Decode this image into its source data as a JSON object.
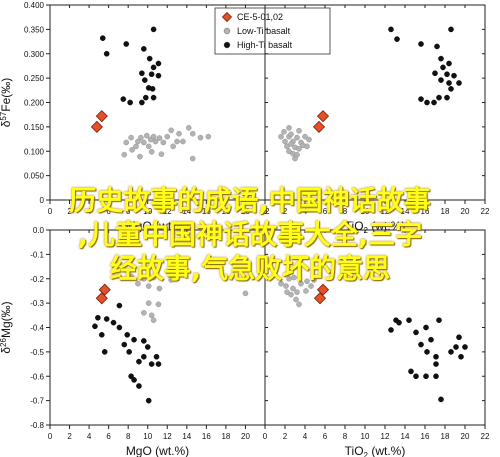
{
  "chart_data": [
    {
      "type": "scatter",
      "panel": "top-left",
      "title": "",
      "xlabel": "MgO",
      "xlabel_rest": "(wt.%)",
      "ylabel_prefix": "δ",
      "ylabel_sup": "57",
      "ylabel_rest": "Fe(‰)",
      "xlim": [
        0,
        22
      ],
      "ylim": [
        0,
        0.4
      ],
      "xticks": [
        "0",
        "2",
        "4",
        "6",
        "8",
        "10",
        "12",
        "14",
        "16",
        "18",
        "20",
        "22"
      ],
      "yticks": [
        "0",
        "0.050",
        "0.100",
        "0.150",
        "0.200",
        "0.250",
        "0.300",
        "0.350",
        "0.400"
      ],
      "legend": {
        "position": "top-right",
        "entries": [
          {
            "label": "CE-5-01,02",
            "marker": "diamond",
            "color": "#e2522a"
          },
          {
            "label": "Low-Ti basalt",
            "marker": "circle",
            "color": "#b3b3b3"
          },
          {
            "label": "High-Ti basalt",
            "marker": "circle",
            "color": "#111111"
          }
        ]
      },
      "series": [
        {
          "group": "CE-5-01,02",
          "points": [
            [
              4.8,
              0.15
            ],
            [
              5.3,
              0.172
            ]
          ]
        },
        {
          "group": "Low-Ti basalt",
          "points": [
            [
              7.8,
              0.118
            ],
            [
              8.3,
              0.128
            ],
            [
              8.8,
              0.11
            ],
            [
              9,
              0.12
            ],
            [
              9.3,
              0.128
            ],
            [
              9.6,
              0.118
            ],
            [
              9.9,
              0.132
            ],
            [
              10.1,
              0.11
            ],
            [
              10.3,
              0.124
            ],
            [
              10.6,
              0.13
            ],
            [
              10.8,
              0.12
            ],
            [
              11.2,
              0.127
            ],
            [
              11.6,
              0.118
            ],
            [
              12,
              0.13
            ],
            [
              12.6,
              0.11
            ],
            [
              13.2,
              0.136
            ],
            [
              13.6,
              0.12
            ],
            [
              14.2,
              0.148
            ],
            [
              14.6,
              0.136
            ],
            [
              15.4,
              0.128
            ],
            [
              16.2,
              0.13
            ],
            [
              13,
              0.12
            ],
            [
              12.4,
              0.143
            ],
            [
              14.6,
              0.085
            ],
            [
              8.4,
              0.103
            ],
            [
              7.6,
              0.093
            ],
            [
              10.4,
              0.099
            ],
            [
              9.2,
              0.089
            ],
            [
              11.4,
              0.094
            ]
          ]
        },
        {
          "group": "High-Ti basalt",
          "points": [
            [
              5.4,
              0.332
            ],
            [
              5.8,
              0.3
            ],
            [
              7.8,
              0.32
            ],
            [
              9.6,
              0.31
            ],
            [
              10.6,
              0.35
            ],
            [
              10.2,
              0.29
            ],
            [
              11.1,
              0.28
            ],
            [
              10.6,
              0.272
            ],
            [
              9.4,
              0.26
            ],
            [
              10.4,
              0.258
            ],
            [
              9.7,
              0.246
            ],
            [
              11.1,
              0.255
            ],
            [
              10.1,
              0.23
            ],
            [
              10.5,
              0.228
            ],
            [
              9.8,
              0.21
            ],
            [
              10.6,
              0.21
            ],
            [
              8.2,
              0.2
            ],
            [
              7.5,
              0.207
            ],
            [
              9.4,
              0.2
            ]
          ]
        }
      ]
    },
    {
      "type": "scatter",
      "panel": "top-right",
      "title": "",
      "xlabel": "TiO",
      "xlabel_sub": "2",
      "xlabel_rest": "(wt.%)",
      "xlim": [
        0,
        22
      ],
      "ylim": [
        0,
        0.4
      ],
      "xticks": [
        "0",
        "2",
        "4",
        "6",
        "8",
        "10",
        "12",
        "14",
        "16",
        "18",
        "20",
        "22"
      ],
      "series": [
        {
          "group": "CE-5-01,02",
          "points": [
            [
              5.4,
              0.15
            ],
            [
              5.8,
              0.172
            ]
          ]
        },
        {
          "group": "Low-Ti basalt",
          "points": [
            [
              1.6,
              0.13
            ],
            [
              2,
              0.12
            ],
            [
              2.4,
              0.13
            ],
            [
              2.8,
              0.12
            ],
            [
              3.2,
              0.128
            ],
            [
              3.6,
              0.118
            ],
            [
              4,
              0.13
            ],
            [
              2.2,
              0.11
            ],
            [
              2.6,
              0.115
            ],
            [
              3,
              0.108
            ],
            [
              3.4,
              0.105
            ],
            [
              3.8,
              0.112
            ],
            [
              4.4,
              0.124
            ],
            [
              2.4,
              0.1
            ],
            [
              2.8,
              0.095
            ],
            [
              3.2,
              0.093
            ],
            [
              1.9,
              0.14
            ],
            [
              2.4,
              0.148
            ],
            [
              3.4,
              0.142
            ],
            [
              4.2,
              0.11
            ],
            [
              3,
              0.085
            ],
            [
              2.6,
              0.135
            ]
          ]
        },
        {
          "group": "High-Ti basalt",
          "points": [
            [
              12.6,
              0.35
            ],
            [
              13.2,
              0.33
            ],
            [
              15.6,
              0.32
            ],
            [
              17.2,
              0.315
            ],
            [
              18.6,
              0.35
            ],
            [
              17.6,
              0.29
            ],
            [
              18.4,
              0.28
            ],
            [
              17.8,
              0.272
            ],
            [
              17,
              0.26
            ],
            [
              18.2,
              0.258
            ],
            [
              17.6,
              0.246
            ],
            [
              18.9,
              0.255
            ],
            [
              18.4,
              0.24
            ],
            [
              18.6,
              0.228
            ],
            [
              17.4,
              0.21
            ],
            [
              18.2,
              0.21
            ],
            [
              16.2,
              0.2
            ],
            [
              15.6,
              0.207
            ],
            [
              16.9,
              0.2
            ],
            [
              19.4,
              0.24
            ]
          ]
        }
      ]
    },
    {
      "type": "scatter",
      "panel": "bottom-left",
      "title": "",
      "xlabel": "MgO",
      "xlabel_rest": "(wt.%)",
      "ylabel_prefix": "δ",
      "ylabel_sup": "26",
      "ylabel_rest": "Mg(‰)",
      "xlim": [
        0,
        22
      ],
      "ylim": [
        -0.8,
        0
      ],
      "xticks": [
        "0",
        "2",
        "4",
        "6",
        "8",
        "10",
        "12",
        "14",
        "16",
        "18",
        "20"
      ],
      "yticks": [
        "-0.8",
        "-0.7",
        "-0.6",
        "-0.5",
        "-0.4",
        "-0.3",
        "-0.2",
        "-0.1",
        "0.0"
      ],
      "series": [
        {
          "group": "CE-5-01,02",
          "points": [
            [
              5.3,
              -0.28
            ],
            [
              5.6,
              -0.245
            ]
          ]
        },
        {
          "group": "Low-Ti basalt",
          "points": [
            [
              9,
              -0.22
            ],
            [
              10.1,
              -0.23
            ],
            [
              9.6,
              -0.2
            ],
            [
              10.6,
              -0.195
            ],
            [
              11.2,
              -0.24
            ],
            [
              11.1,
              -0.305
            ],
            [
              10.1,
              -0.3
            ],
            [
              10.4,
              -0.35
            ],
            [
              9.6,
              -0.34
            ],
            [
              10.6,
              -0.37
            ],
            [
              20,
              -0.26
            ],
            [
              8.3,
              -0.19
            ],
            [
              12.4,
              -0.205
            ]
          ]
        },
        {
          "group": "High-Ti basalt",
          "points": [
            [
              4.6,
              -0.395
            ],
            [
              5.3,
              -0.43
            ],
            [
              5.6,
              -0.5
            ],
            [
              6.5,
              -0.38
            ],
            [
              7.1,
              -0.4
            ],
            [
              7.6,
              -0.47
            ],
            [
              7.9,
              -0.43
            ],
            [
              8.1,
              -0.5
            ],
            [
              8.6,
              -0.45
            ],
            [
              9.1,
              -0.54
            ],
            [
              9.6,
              -0.52
            ],
            [
              10,
              -0.48
            ],
            [
              10.4,
              -0.55
            ],
            [
              10.9,
              -0.52
            ],
            [
              11.1,
              -0.55
            ],
            [
              8.3,
              -0.6
            ],
            [
              8.6,
              -0.615
            ],
            [
              9.1,
              -0.64
            ],
            [
              10.1,
              -0.7
            ],
            [
              9.6,
              -0.455
            ],
            [
              7.1,
              -0.31
            ],
            [
              5.8,
              -0.365
            ],
            [
              4.9,
              -0.36
            ]
          ]
        }
      ]
    },
    {
      "type": "scatter",
      "panel": "bottom-right",
      "title": "",
      "xlabel": "TiO",
      "xlabel_sub": "2",
      "xlabel_rest": "(wt.%)",
      "xlim": [
        0,
        22
      ],
      "ylim": [
        -0.8,
        0
      ],
      "xticks": [
        "0",
        "2",
        "4",
        "6",
        "8",
        "10",
        "12",
        "14",
        "16",
        "18",
        "20",
        "22"
      ],
      "series": [
        {
          "group": "CE-5-01,02",
          "points": [
            [
              5.5,
              -0.28
            ],
            [
              5.8,
              -0.245
            ]
          ]
        },
        {
          "group": "Low-Ti basalt",
          "points": [
            [
              1.6,
              -0.22
            ],
            [
              2.1,
              -0.23
            ],
            [
              2.4,
              -0.2
            ],
            [
              2.8,
              -0.24
            ],
            [
              3.2,
              -0.255
            ],
            [
              3.6,
              -0.22
            ],
            [
              4.2,
              -0.21
            ],
            [
              2.2,
              -0.255
            ],
            [
              2.6,
              -0.265
            ],
            [
              3.1,
              -0.285
            ],
            [
              3.4,
              -0.305
            ],
            [
              4.1,
              -0.25
            ],
            [
              4.6,
              -0.23
            ],
            [
              4.9,
              -0.205
            ],
            [
              2.9,
              -0.195
            ]
          ]
        },
        {
          "group": "High-Ti basalt",
          "points": [
            [
              12.6,
              -0.41
            ],
            [
              13.4,
              -0.38
            ],
            [
              14.4,
              -0.37
            ],
            [
              15.1,
              -0.42
            ],
            [
              16.1,
              -0.4
            ],
            [
              16.6,
              -0.45
            ],
            [
              17.4,
              -0.37
            ],
            [
              15.6,
              -0.47
            ],
            [
              16.2,
              -0.5
            ],
            [
              17.1,
              -0.52
            ],
            [
              18.6,
              -0.5
            ],
            [
              19.1,
              -0.48
            ],
            [
              20,
              -0.48
            ],
            [
              19.4,
              -0.44
            ],
            [
              19.6,
              -0.52
            ],
            [
              14.6,
              -0.58
            ],
            [
              15.1,
              -0.6
            ],
            [
              16.1,
              -0.6
            ],
            [
              17.1,
              -0.6
            ],
            [
              17.1,
              -0.55
            ],
            [
              17.6,
              -0.695
            ],
            [
              13.1,
              -0.37
            ]
          ]
        }
      ]
    }
  ],
  "overlay": {
    "line1": "历史故事的成语,中国神话故事",
    "line2": ",儿童中国神话故事大全,三字",
    "line3": "经故事,气急败坏的意思"
  }
}
